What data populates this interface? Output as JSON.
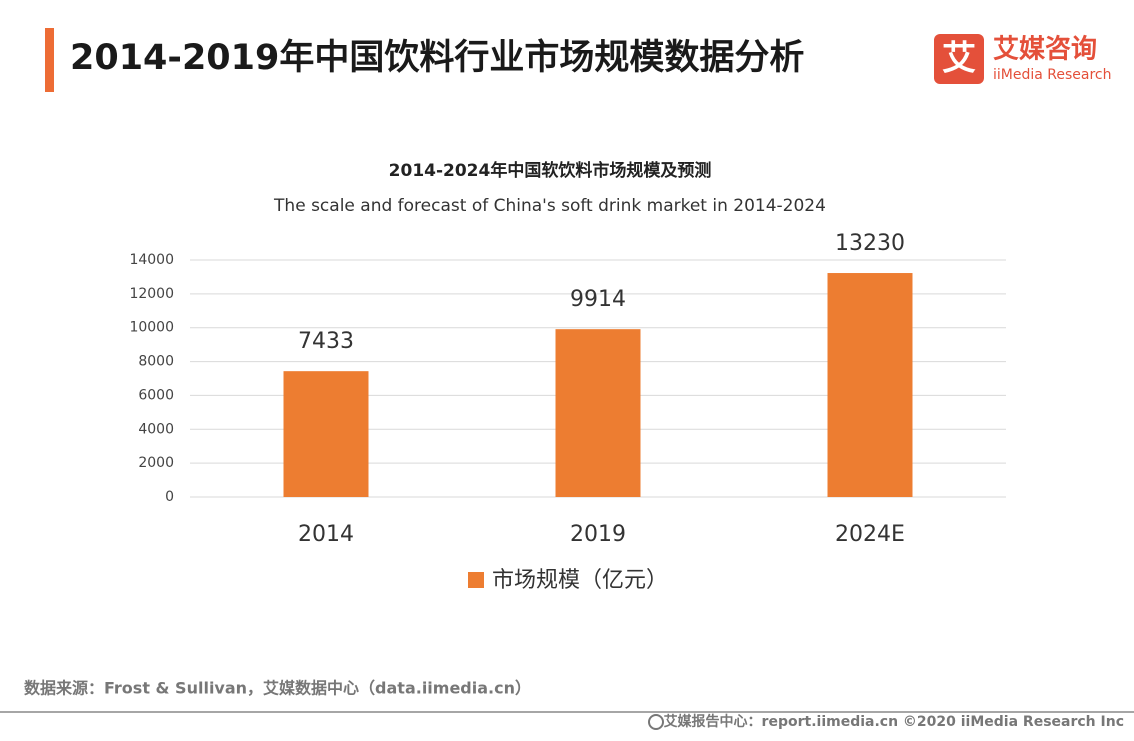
{
  "header": {
    "title": "2014-2019年中国饮料行业市场规模数据分析",
    "logo_icon": "艾",
    "logo_name": "艾媒咨询",
    "logo_sub": "iiMedia Research"
  },
  "chart_data": {
    "type": "bar",
    "title": "2014-2024年中国软饮料市场规模及预测",
    "subtitle": "The scale and forecast of China's soft drink market in 2014-2024",
    "categories": [
      "2014",
      "2019",
      "2024E"
    ],
    "series": [
      {
        "name": "市场规模（亿元）",
        "color": "#ed7d31",
        "values": [
          7433,
          9914,
          13230
        ]
      }
    ],
    "ylim": [
      0,
      14000
    ],
    "yticks": [
      0,
      2000,
      4000,
      6000,
      8000,
      10000,
      12000,
      14000
    ],
    "grid": true,
    "legend": "bottom"
  },
  "footer": {
    "source": "数据来源：Frost & Sullivan，艾媒数据中心（data.iimedia.cn）",
    "copyright": "艾媒报告中心：report.iimedia.cn  ©2020  iiMedia Research  Inc"
  }
}
